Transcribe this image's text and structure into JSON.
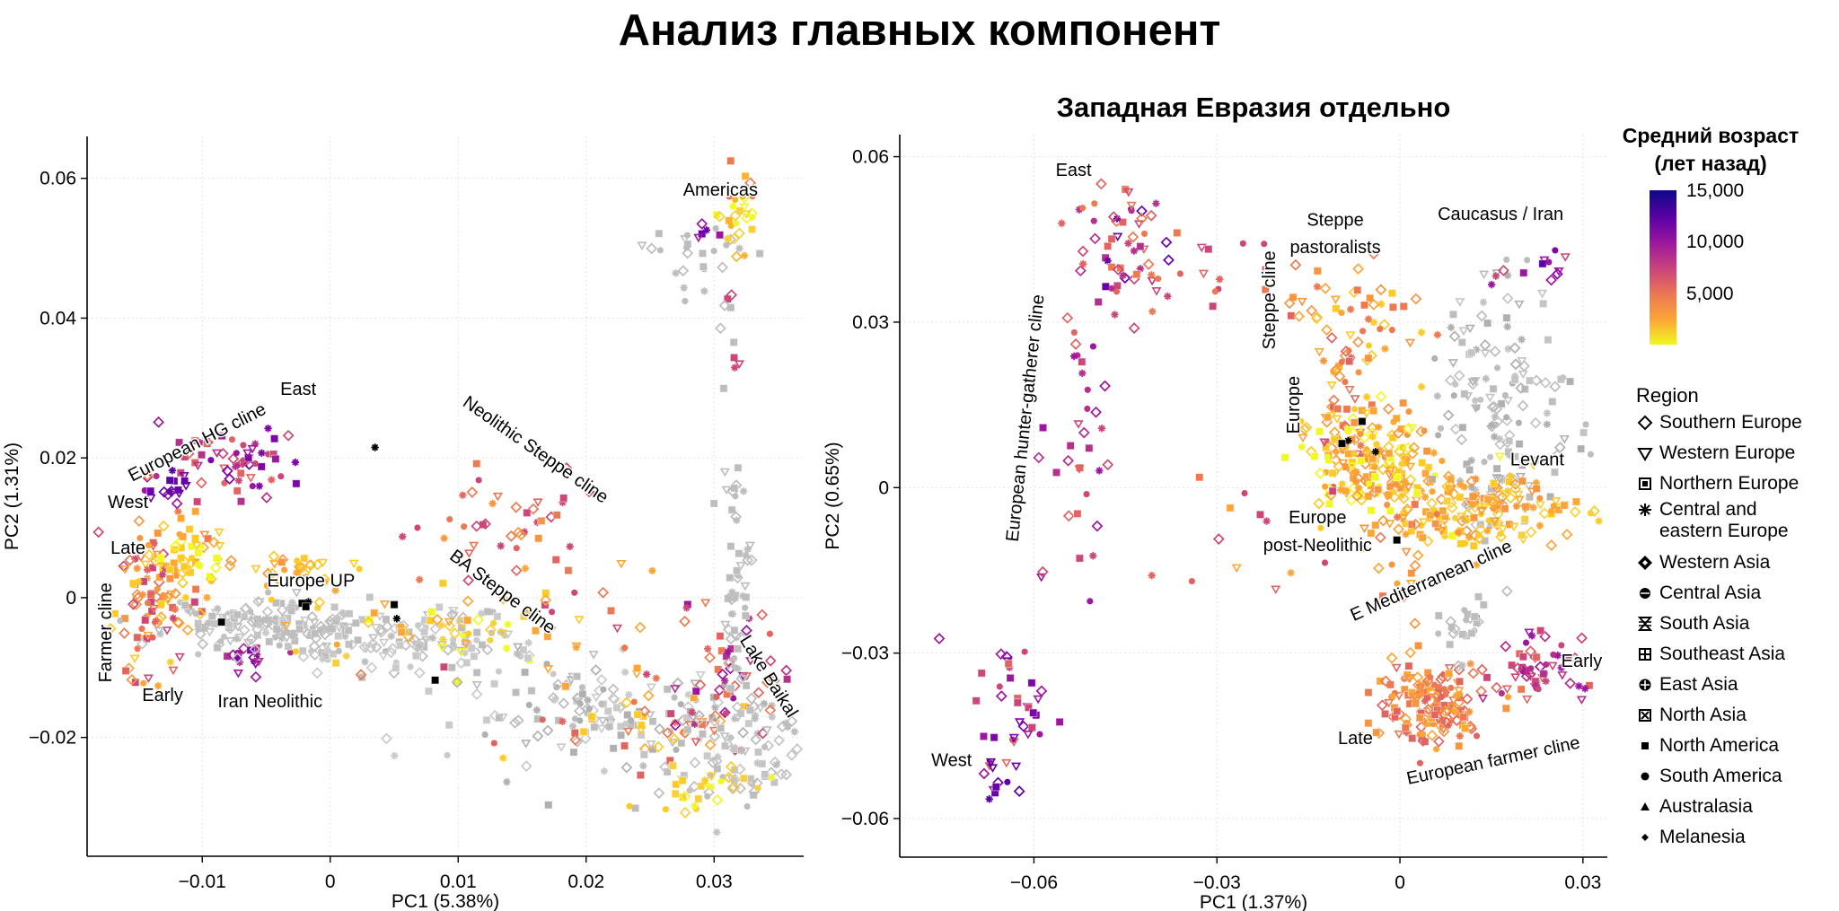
{
  "title": "Анализ главных компонент",
  "chart_data": [
    {
      "type": "scatter",
      "title": "",
      "xlabel": "PC1 (5.38%)",
      "ylabel": "PC2 (1.31%)",
      "xlim": [
        -0.019,
        0.037
      ],
      "ylim": [
        -0.037,
        0.066
      ],
      "xticks": [
        -0.01,
        0,
        0.01,
        0.02,
        0.03
      ],
      "xtick_labels": [
        "−0.01",
        "0",
        "0.01",
        "0.02",
        "0.03"
      ],
      "yticks": [
        -0.02,
        0,
        0.02,
        0.04,
        0.06
      ],
      "ytick_labels": [
        "−0.02",
        "0",
        "0.02",
        "0.04",
        "0.06"
      ],
      "grid": true,
      "annotations": [
        {
          "text": "Americas",
          "x": 0.0305,
          "y": 0.0575,
          "rotate": 0
        },
        {
          "text": "European HG cline",
          "x": -0.0102,
          "y": 0.0215,
          "rotate": -27
        },
        {
          "text": "East",
          "x": -0.0025,
          "y": 0.029,
          "rotate": 0
        },
        {
          "text": "Neolithic Steppe cline",
          "x": 0.0158,
          "y": 0.0205,
          "rotate": 35
        },
        {
          "text": "West",
          "x": -0.0158,
          "y": 0.0128,
          "rotate": 0
        },
        {
          "text": "Late",
          "x": -0.0158,
          "y": 0.0063,
          "rotate": 0
        },
        {
          "text": "Europe UP",
          "x": -0.0015,
          "y": 0.0016,
          "rotate": 0
        },
        {
          "text": "BA Steppe cline",
          "x": 0.0132,
          "y": 0.0002,
          "rotate": 37
        },
        {
          "text": "Farmer cline",
          "x": -0.0171,
          "y": -0.005,
          "rotate": -90
        },
        {
          "text": "Early",
          "x": -0.0131,
          "y": -0.0148,
          "rotate": 0
        },
        {
          "text": "Iran Neolithic",
          "x": -0.0047,
          "y": -0.0157,
          "rotate": 0
        },
        {
          "text": "Lake Baikal",
          "x": 0.0339,
          "y": -0.0117,
          "rotate": 58
        }
      ],
      "clusters": [
        {
          "name": "americas-gray",
          "cx": 0.0285,
          "cy": 0.049,
          "sx": 0.0025,
          "sy": 0.0025,
          "n": 24,
          "colors": [
            "#bdbdbd"
          ]
        },
        {
          "name": "americas-yellow",
          "cx": 0.0318,
          "cy": 0.055,
          "sx": 0.0008,
          "sy": 0.003,
          "n": 28,
          "colors": [
            "#f7d13d",
            "#fbb32f",
            "#f0f921",
            "#ed7953"
          ]
        },
        {
          "name": "americas-purple",
          "cx": 0.0295,
          "cy": 0.052,
          "sx": 0.0008,
          "sy": 0.001,
          "n": 5,
          "colors": [
            "#9c179e",
            "#6a00a8"
          ]
        },
        {
          "name": "americas-tail",
          "cx": 0.0312,
          "cy": 0.037,
          "sx": 0.0004,
          "sy": 0.006,
          "n": 10,
          "colors": [
            "#bdbdbd",
            "#f7d13d",
            "#cc4778"
          ]
        },
        {
          "name": "hg-cline",
          "cx": -0.0075,
          "cy": 0.0195,
          "sx": 0.0028,
          "sy": 0.0025,
          "n": 60,
          "colors": [
            "#9c179e",
            "#b52f8c",
            "#cc4778",
            "#7e03a8",
            "#e16462"
          ]
        },
        {
          "name": "hg-west",
          "cx": -0.0125,
          "cy": 0.0155,
          "sx": 0.001,
          "sy": 0.0015,
          "n": 16,
          "colors": [
            "#6a00a8",
            "#5c01a6",
            "#9c179e"
          ]
        },
        {
          "name": "farmer-cline",
          "cx": -0.0135,
          "cy": -0.0005,
          "sx": 0.0018,
          "sy": 0.0055,
          "n": 110,
          "colors": [
            "#fca636",
            "#f89540",
            "#ed7953",
            "#e16462",
            "#fdca26",
            "#cc4778"
          ]
        },
        {
          "name": "europe-mid",
          "cx": -0.011,
          "cy": 0.005,
          "sx": 0.0015,
          "sy": 0.003,
          "n": 40,
          "colors": [
            "#fdca26",
            "#f0f921",
            "#fca636"
          ]
        },
        {
          "name": "iran-neolithic",
          "cx": -0.006,
          "cy": -0.0085,
          "sx": 0.0012,
          "sy": 0.001,
          "n": 18,
          "colors": [
            "#9c179e",
            "#b52f8c",
            "#7e03a8"
          ]
        },
        {
          "name": "west-gray-band",
          "cx": -0.005,
          "cy": -0.004,
          "sx": 0.004,
          "sy": 0.002,
          "n": 140,
          "colors": [
            "#bdbdbd",
            "#c4c4c4"
          ]
        },
        {
          "name": "europe-up-band",
          "cx": -0.0025,
          "cy": 0.004,
          "sx": 0.002,
          "sy": 0.0012,
          "n": 30,
          "colors": [
            "#fca636",
            "#fdca26",
            "#f89540"
          ]
        },
        {
          "name": "central-gray",
          "cx": 0.005,
          "cy": -0.0065,
          "sx": 0.0055,
          "sy": 0.0022,
          "n": 130,
          "colors": [
            "#bdbdbd",
            "#cacaca"
          ]
        },
        {
          "name": "ba-steppe",
          "cx": 0.0085,
          "cy": -0.0045,
          "sx": 0.005,
          "sy": 0.0025,
          "n": 50,
          "colors": [
            "#f7d13d",
            "#fdca26",
            "#fca636",
            "#f0f921"
          ]
        },
        {
          "name": "neolithic-steppe",
          "cx": 0.0135,
          "cy": 0.012,
          "sx": 0.003,
          "sy": 0.004,
          "n": 38,
          "colors": [
            "#ed7953",
            "#e16462",
            "#f89540",
            "#cc4778"
          ]
        },
        {
          "name": "east-gray",
          "cx": 0.022,
          "cy": -0.0165,
          "sx": 0.006,
          "sy": 0.0035,
          "n": 140,
          "colors": [
            "#bdbdbd",
            "#cacaca",
            "#b0b0b0"
          ]
        },
        {
          "name": "east-colored",
          "cx": 0.026,
          "cy": -0.019,
          "sx": 0.005,
          "sy": 0.003,
          "n": 45,
          "colors": [
            "#fca636",
            "#fdca26",
            "#ed7953",
            "#e16462"
          ]
        },
        {
          "name": "baikal",
          "cx": 0.031,
          "cy": -0.012,
          "sx": 0.0018,
          "sy": 0.005,
          "n": 45,
          "colors": [
            "#cc4778",
            "#b52f8c",
            "#e16462",
            "#9c179e",
            "#ed7953"
          ]
        },
        {
          "name": "baikal-gray",
          "cx": 0.0318,
          "cy": 0.002,
          "sx": 0.0006,
          "sy": 0.009,
          "n": 55,
          "colors": [
            "#bdbdbd"
          ]
        },
        {
          "name": "east-asia-gray",
          "cx": 0.0315,
          "cy": -0.024,
          "sx": 0.003,
          "sy": 0.004,
          "n": 80,
          "colors": [
            "#bdbdbd",
            "#c4c4c4"
          ]
        },
        {
          "name": "east-yellow",
          "cx": 0.029,
          "cy": -0.027,
          "sx": 0.003,
          "sy": 0.002,
          "n": 25,
          "colors": [
            "#f7d13d",
            "#fdca26",
            "#f0f921"
          ]
        },
        {
          "name": "scattered-orange",
          "cx": 0.019,
          "cy": -0.002,
          "sx": 0.005,
          "sy": 0.006,
          "n": 25,
          "colors": [
            "#ed7953",
            "#fca636",
            "#cc4778"
          ]
        }
      ],
      "black_points": [
        [
          -0.0085,
          -0.0035
        ],
        [
          -0.002,
          -0.001
        ],
        [
          -0.0022,
          -0.0008
        ],
        [
          -0.0017,
          -0.0006
        ],
        [
          -0.0019,
          -0.0013
        ],
        [
          0.0035,
          0.0215
        ],
        [
          0.005,
          -0.001
        ],
        [
          0.0052,
          -0.003
        ],
        [
          0.0082,
          -0.0118
        ]
      ]
    },
    {
      "type": "scatter",
      "title": "Западная Евразия отдельно",
      "xlabel": "PC1 (1.37%)",
      "ylabel": "PC2 (0.65%)",
      "xlim": [
        -0.082,
        0.034
      ],
      "ylim": [
        -0.067,
        0.064
      ],
      "xticks": [
        -0.06,
        -0.03,
        0,
        0.03
      ],
      "xtick_labels": [
        "−0.06",
        "−0.03",
        "0",
        "0.03"
      ],
      "yticks": [
        -0.06,
        -0.03,
        0,
        0.03,
        0.06
      ],
      "ytick_labels": [
        "−0.06",
        "−0.03",
        "0",
        "0.03",
        "0.06"
      ],
      "grid": true,
      "annotations": [
        {
          "text": "East",
          "x": -0.0535,
          "y": 0.0565,
          "rotate": 0
        },
        {
          "text": "Steppe",
          "x": -0.0106,
          "y": 0.0475,
          "rotate": 0
        },
        {
          "text": "pastoralists",
          "x": -0.0106,
          "y": 0.0425,
          "rotate": 0
        },
        {
          "text": "Caucasus / Iran",
          "x": 0.0165,
          "y": 0.0485,
          "rotate": 0
        },
        {
          "text": "Steppe cline",
          "x": -0.0205,
          "y": 0.034,
          "rotate": -90
        },
        {
          "text": "Europe",
          "x": -0.0165,
          "y": 0.015,
          "rotate": -90
        },
        {
          "text": "European hunter-gatherer cline",
          "x": -0.0605,
          "y": 0.0125,
          "rotate": -84
        },
        {
          "text": "Levant",
          "x": 0.0225,
          "y": 0.004,
          "rotate": 0
        },
        {
          "text": "Europe",
          "x": -0.0135,
          "y": -0.0065,
          "rotate": 0
        },
        {
          "text": "post-Neolithic",
          "x": -0.0135,
          "y": -0.0115,
          "rotate": 0
        },
        {
          "text": "E Mediterranean cline",
          "x": 0.0055,
          "y": -0.0178,
          "rotate": -24
        },
        {
          "text": "Early",
          "x": 0.0298,
          "y": -0.0325,
          "rotate": 0
        },
        {
          "text": "Late",
          "x": -0.0073,
          "y": -0.0465,
          "rotate": 0
        },
        {
          "text": "European farmer cline",
          "x": 0.0155,
          "y": -0.0505,
          "rotate": -12
        },
        {
          "text": "West",
          "x": -0.0735,
          "y": -0.0505,
          "rotate": 0
        }
      ],
      "clusters": [
        {
          "name": "hg-east",
          "cx": -0.045,
          "cy": 0.044,
          "sx": 0.004,
          "sy": 0.0075,
          "n": 55,
          "colors": [
            "#cc4778",
            "#e16462",
            "#b52f8c",
            "#6a00a8",
            "#ed7953"
          ]
        },
        {
          "name": "hg-cline-mid",
          "cx": -0.052,
          "cy": 0.01,
          "sx": 0.004,
          "sy": 0.012,
          "n": 35,
          "colors": [
            "#cc4778",
            "#b52f8c",
            "#9c179e",
            "#e16462"
          ]
        },
        {
          "name": "hg-west-low",
          "cx": -0.062,
          "cy": -0.04,
          "sx": 0.004,
          "sy": 0.006,
          "n": 35,
          "colors": [
            "#e16462",
            "#cc4778",
            "#9c179e",
            "#7e03a8"
          ]
        },
        {
          "name": "hg-far-west",
          "cx": -0.0665,
          "cy": -0.053,
          "sx": 0.0015,
          "sy": 0.0025,
          "n": 12,
          "colors": [
            "#6a00a8",
            "#5c01a6",
            "#9c179e"
          ]
        },
        {
          "name": "east-spread",
          "cx": -0.03,
          "cy": 0.038,
          "sx": 0.007,
          "sy": 0.004,
          "n": 18,
          "colors": [
            "#ed7953",
            "#e16462",
            "#cc4778"
          ]
        },
        {
          "name": "steppe-past",
          "cx": -0.007,
          "cy": 0.028,
          "sx": 0.005,
          "sy": 0.009,
          "n": 60,
          "colors": [
            "#f89540",
            "#fca636",
            "#ed7953",
            "#fdca26"
          ]
        },
        {
          "name": "steppe-cline",
          "cx": -0.009,
          "cy": 0.014,
          "sx": 0.002,
          "sy": 0.007,
          "n": 35,
          "colors": [
            "#ed7953",
            "#f89540",
            "#e16462"
          ]
        },
        {
          "name": "europe-postneo",
          "cx": -0.005,
          "cy": 0.004,
          "sx": 0.006,
          "sy": 0.005,
          "n": 180,
          "colors": [
            "#fca636",
            "#fdca26",
            "#f0f921",
            "#f89540"
          ]
        },
        {
          "name": "gray-levant",
          "cx": 0.017,
          "cy": 0.015,
          "sx": 0.006,
          "sy": 0.011,
          "n": 150,
          "colors": [
            "#bdbdbd",
            "#c4c4c4",
            "#b0b0b0"
          ]
        },
        {
          "name": "e-med-cline",
          "cx": 0.012,
          "cy": -0.004,
          "sx": 0.008,
          "sy": 0.0035,
          "n": 160,
          "colors": [
            "#fdca26",
            "#fca636",
            "#f7d13d",
            "#f89540"
          ]
        },
        {
          "name": "caucasus",
          "cx": 0.024,
          "cy": 0.04,
          "sx": 0.0035,
          "sy": 0.0025,
          "n": 12,
          "colors": [
            "#9c179e",
            "#7e03a8",
            "#cc4778",
            "#5c01a6"
          ]
        },
        {
          "name": "farmer-late",
          "cx": 0.005,
          "cy": -0.039,
          "sx": 0.005,
          "sy": 0.004,
          "n": 160,
          "colors": [
            "#ed7953",
            "#f89540",
            "#e16462",
            "#fca636"
          ]
        },
        {
          "name": "farmer-early",
          "cx": 0.022,
          "cy": -0.033,
          "sx": 0.004,
          "sy": 0.003,
          "n": 55,
          "colors": [
            "#cc4778",
            "#b52f8c",
            "#e16462",
            "#9c179e"
          ]
        },
        {
          "name": "gray-farmer",
          "cx": 0.011,
          "cy": -0.025,
          "sx": 0.002,
          "sy": 0.003,
          "n": 22,
          "colors": [
            "#bdbdbd"
          ]
        },
        {
          "name": "mid-orange-scatter",
          "cx": -0.025,
          "cy": -0.008,
          "sx": 0.008,
          "sy": 0.012,
          "n": 14,
          "colors": [
            "#ed7953",
            "#e16462",
            "#fca636",
            "#cc4778"
          ]
        },
        {
          "name": "europe-post-yellow",
          "cx": 0.0,
          "cy": -0.012,
          "sx": 0.003,
          "sy": 0.008,
          "n": 25,
          "colors": [
            "#f89540",
            "#fca636",
            "#ed7953"
          ]
        }
      ],
      "black_points": [
        [
          -0.0062,
          0.012
        ],
        [
          -0.0085,
          0.0085
        ],
        [
          -0.0095,
          0.008
        ],
        [
          -0.004,
          0.0065
        ],
        [
          -0.0005,
          -0.0095
        ]
      ]
    }
  ],
  "legend": {
    "colorbar": {
      "title": "Средний возраст (лет назад)",
      "ticks": [
        {
          "label": "15,000",
          "value": 15000
        },
        {
          "label": "10,000",
          "value": 10000
        },
        {
          "label": "5,000",
          "value": 5000
        }
      ],
      "max": 15000,
      "min": 0
    },
    "region_title": "Region",
    "regions": [
      {
        "label": "Southern Europe",
        "icon": "diamond-open-icon"
      },
      {
        "label": "Western Europe",
        "icon": "triangle-down-open-icon"
      },
      {
        "label": "Northern Europe",
        "icon": "square-boxed-icon"
      },
      {
        "label": "Central and eastern Europe",
        "icon": "asterisk-icon"
      },
      {
        "label": "Western Asia",
        "icon": "diamond-boxed-icon"
      },
      {
        "label": "Central Asia",
        "icon": "circle-boxed-icon"
      },
      {
        "label": "South Asia",
        "icon": "hourglass-icon"
      },
      {
        "label": "Southeast Asia",
        "icon": "square-plus-icon"
      },
      {
        "label": "East Asia",
        "icon": "circle-plus-icon"
      },
      {
        "label": "North Asia",
        "icon": "square-cross-icon"
      },
      {
        "label": "North America",
        "icon": "square-filled-icon"
      },
      {
        "label": "South America",
        "icon": "circle-filled-icon"
      },
      {
        "label": "Australasia",
        "icon": "triangle-filled-icon"
      },
      {
        "label": "Melanesia",
        "icon": "diamond-filled-icon"
      }
    ]
  }
}
